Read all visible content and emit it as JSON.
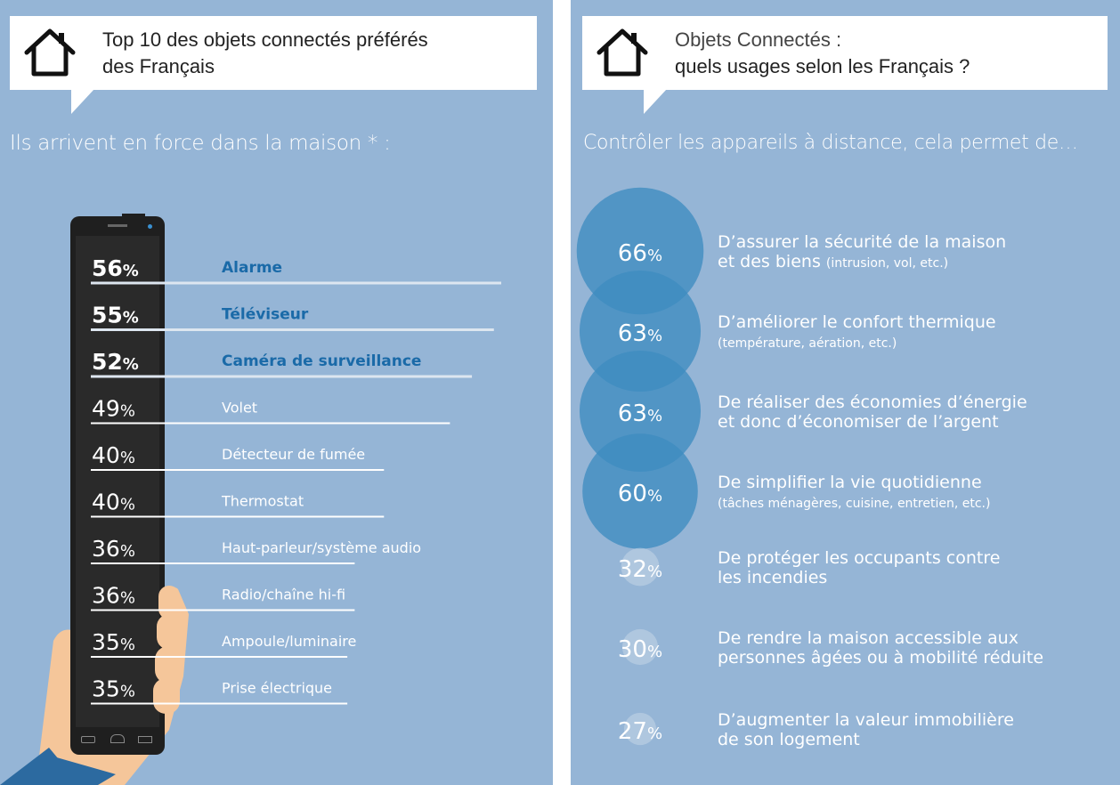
{
  "left": {
    "title_line1": "Top 10 des objets connectés préférés",
    "title_line2": "des Français",
    "subtitle": "Ils arrivent en force dans la maison * :",
    "icon": "house-icon",
    "chart_data": {
      "type": "bar",
      "title": "Top 10 des objets connectés préférés des Français",
      "categories": [
        "Alarme",
        "Téléviseur",
        "Caméra de surveillance",
        "Volet",
        "Détecteur de fumée",
        "Thermostat",
        "Haut-parleur/système audio",
        "Radio/chaîne hi-fi",
        "Ampoule/luminaire",
        "Prise électrique"
      ],
      "values": [
        56,
        55,
        52,
        49,
        40,
        40,
        36,
        36,
        35,
        35
      ],
      "value_labels": [
        "56%",
        "55%",
        "52%",
        "49%",
        "40%",
        "40%",
        "36%",
        "36%",
        "35%",
        "35%"
      ],
      "highlighted": [
        true,
        true,
        true,
        false,
        false,
        false,
        false,
        false,
        false,
        false
      ]
    }
  },
  "right": {
    "title_line1": "Objets Connectés :",
    "title_line2": "quels usages selon les Français ?",
    "subtitle": "Contrôler les appareils à distance, cela permet de…",
    "icon": "house-icon",
    "chart_data": {
      "type": "bubble",
      "title": "Objets Connectés : quels usages selon les Français ?",
      "categories": [
        "D’assurer la sécurité de la maison et des biens (intrusion, vol, etc.)",
        "D’améliorer le confort thermique (température, aération, etc.)",
        "De réaliser des économies d’énergie et donc d’économiser de l’argent",
        "De simplifier la vie quotidienne (tâches ménagères, cuisine, entretien, etc.)",
        "De protéger les occupants contre les incendies",
        "De rendre la maison accessible aux personnes âgées ou à mobilité réduite",
        "D’augmenter la valeur immobilière de son logement"
      ],
      "values": [
        66,
        63,
        63,
        60,
        32,
        30,
        27
      ],
      "value_labels": [
        "66%",
        "63%",
        "63%",
        "60%",
        "32%",
        "30%",
        "27%"
      ],
      "lines": [
        [
          "D’assurer la sécurité de la maison",
          "et des biens",
          "(intrusion, vol, etc.)"
        ],
        [
          "D’améliorer le confort thermique",
          "",
          "(température, aération, etc.)"
        ],
        [
          "De réaliser des économies d’énergie",
          "et donc d’économiser de l’argent",
          ""
        ],
        [
          "De simplifier la vie quotidienne",
          "",
          "(tâches ménagères, cuisine, entretien, etc.)"
        ],
        [
          "De protéger les occupants contre",
          "les incendies",
          ""
        ],
        [
          "De rendre la maison accessible aux",
          "personnes âgées ou à mobilité réduite",
          ""
        ],
        [
          "D’augmenter la valeur immobilière",
          "de son logement",
          ""
        ]
      ]
    }
  },
  "colors": {
    "background": "#95b5d6",
    "highlight_label": "#1a6aa8",
    "bubble_big": "#3d8cc0",
    "bubble_small": "#c4d6e8",
    "text_light": "#ffffff"
  }
}
